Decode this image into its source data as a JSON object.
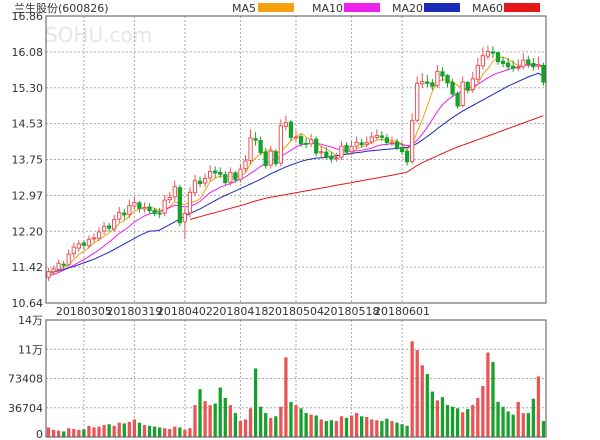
{
  "window": {
    "title": "兰生股份(600826)",
    "watermark": "SOHU.com"
  },
  "legend": [
    {
      "label": "MA5",
      "color": "#f5a10f"
    },
    {
      "label": "MA10",
      "color": "#ee22ee"
    },
    {
      "label": "MA20",
      "color": "#1a2bb8"
    },
    {
      "label": "MA60",
      "color": "#e41818"
    }
  ],
  "price_axis": {
    "ticks": [
      "16.86",
      "16.08",
      "15.30",
      "14.53",
      "13.75",
      "12.97",
      "12.20",
      "11.42",
      "10.64"
    ],
    "min": 10.64,
    "max": 16.86
  },
  "volume_axis": {
    "ticks": [
      "14万",
      "11万",
      "73408",
      "36704",
      "0"
    ],
    "max": 146816
  },
  "date_labels": [
    "20180305",
    "20180319",
    "20180402",
    "20180418",
    "20180504",
    "20180518",
    "20180601"
  ],
  "colors": {
    "up": "#ea5457",
    "down": "#16a22a",
    "grid": "#999999",
    "frame": "#555555"
  },
  "chart_data": {
    "type": "candlestick",
    "series_close": [
      11.32,
      11.38,
      11.5,
      11.46,
      11.7,
      11.85,
      11.92,
      11.89,
      12.02,
      12.05,
      12.18,
      12.3,
      12.26,
      12.45,
      12.6,
      12.55,
      12.75,
      12.82,
      12.69,
      12.71,
      12.64,
      12.58,
      12.58,
      12.87,
      12.93,
      13.16,
      12.38,
      12.58,
      13.04,
      13.29,
      13.23,
      13.34,
      13.49,
      13.46,
      13.43,
      13.25,
      13.47,
      13.31,
      13.54,
      13.72,
      14.22,
      14.17,
      13.9,
      13.62,
      13.93,
      13.66,
      14.48,
      14.55,
      14.23,
      14.24,
      14.09,
      14.08,
      14.18,
      13.89,
      13.92,
      13.81,
      13.76,
      13.79,
      14.04,
      13.91,
      14.03,
      14.12,
      14.07,
      14.12,
      14.24,
      14.27,
      14.23,
      14.12,
      14.12,
      14.0,
      13.92,
      13.7,
      14.59,
      15.4,
      15.44,
      15.4,
      15.34,
      15.66,
      15.56,
      15.41,
      15.17,
      14.91,
      15.43,
      15.26,
      15.5,
      15.79,
      16.0,
      16.09,
      16.06,
      15.87,
      15.83,
      15.76,
      15.73,
      15.75,
      15.9,
      15.82,
      15.76,
      15.8,
      15.43
    ],
    "series_open": [
      11.2,
      11.32,
      11.37,
      11.48,
      11.47,
      11.71,
      11.83,
      11.94,
      11.88,
      12.03,
      12.04,
      12.2,
      12.31,
      12.24,
      12.46,
      12.59,
      12.56,
      12.74,
      12.81,
      12.68,
      12.72,
      12.65,
      12.59,
      12.59,
      12.88,
      12.94,
      13.14,
      12.4,
      12.59,
      13.03,
      13.28,
      13.24,
      13.35,
      13.5,
      13.47,
      13.42,
      13.26,
      13.46,
      13.32,
      13.55,
      13.73,
      14.2,
      14.16,
      13.91,
      13.63,
      13.92,
      13.67,
      14.47,
      14.56,
      14.22,
      14.25,
      14.1,
      14.09,
      14.19,
      13.9,
      13.91,
      13.82,
      13.77,
      13.8,
      14.05,
      13.92,
      14.04,
      14.11,
      14.08,
      14.13,
      14.23,
      14.26,
      14.22,
      14.11,
      14.13,
      14.01,
      13.93,
      13.71,
      14.6,
      15.39,
      15.43,
      15.41,
      15.35,
      15.65,
      15.57,
      15.42,
      15.18,
      14.92,
      15.42,
      15.27,
      15.49,
      15.78,
      15.99,
      16.08,
      16.07,
      15.88,
      15.84,
      15.77,
      15.74,
      15.76,
      15.91,
      15.83,
      15.77,
      15.79
    ],
    "series_high": [
      11.4,
      11.45,
      11.58,
      11.55,
      11.8,
      11.95,
      12.0,
      12.0,
      12.1,
      12.15,
      12.28,
      12.4,
      12.38,
      12.55,
      12.72,
      12.68,
      12.88,
      12.95,
      12.85,
      12.82,
      12.8,
      12.7,
      12.7,
      12.98,
      13.05,
      13.3,
      13.2,
      12.7,
      13.15,
      13.42,
      13.38,
      13.45,
      13.62,
      13.6,
      13.58,
      13.5,
      13.58,
      13.5,
      13.66,
      13.85,
      14.4,
      14.35,
      14.25,
      14.0,
      14.05,
      13.98,
      14.62,
      14.7,
      14.6,
      14.38,
      14.3,
      14.22,
      14.3,
      14.25,
      14.05,
      14.02,
      13.92,
      13.9,
      14.15,
      14.12,
      14.15,
      14.25,
      14.2,
      14.25,
      14.35,
      14.4,
      14.36,
      14.3,
      14.25,
      14.2,
      14.12,
      13.98,
      14.75,
      15.55,
      15.62,
      15.58,
      15.5,
      15.8,
      15.75,
      15.6,
      15.5,
      15.22,
      15.55,
      15.45,
      15.65,
      15.95,
      16.18,
      16.22,
      16.2,
      16.05,
      15.98,
      15.95,
      15.9,
      15.92,
      16.05,
      16.0,
      15.95,
      15.98,
      15.85
    ],
    "series_low": [
      11.12,
      11.25,
      11.3,
      11.38,
      11.4,
      11.62,
      11.75,
      11.8,
      11.82,
      11.95,
      11.98,
      12.12,
      12.18,
      12.18,
      12.38,
      12.45,
      12.48,
      12.66,
      12.6,
      12.6,
      12.58,
      12.52,
      12.48,
      12.52,
      12.8,
      12.85,
      12.3,
      12.02,
      12.5,
      12.95,
      13.15,
      13.15,
      13.28,
      13.35,
      13.35,
      13.2,
      13.18,
      13.25,
      13.25,
      13.48,
      13.65,
      14.05,
      13.85,
      13.55,
      13.55,
      13.6,
      13.6,
      14.38,
      14.15,
      14.12,
      14.02,
      14.0,
      14.02,
      13.82,
      13.8,
      13.75,
      13.68,
      13.7,
      13.74,
      13.85,
      13.85,
      13.98,
      14.0,
      14.02,
      14.08,
      14.18,
      14.15,
      14.05,
      14.04,
      13.95,
      13.85,
      13.62,
      13.65,
      14.55,
      15.3,
      15.32,
      15.25,
      15.3,
      15.45,
      15.32,
      15.1,
      14.85,
      14.88,
      15.18,
      15.2,
      15.42,
      15.7,
      15.92,
      15.95,
      15.8,
      15.75,
      15.68,
      15.65,
      15.66,
      15.7,
      15.74,
      15.68,
      15.7,
      15.35
    ],
    "series_volume": [
      12000,
      9000,
      8000,
      7000,
      11000,
      10000,
      9000,
      9500,
      14000,
      12000,
      13000,
      15000,
      16000,
      14000,
      18000,
      17000,
      19000,
      22000,
      18000,
      15000,
      14000,
      13000,
      12000,
      11000,
      10000,
      13000,
      12000,
      9000,
      11000,
      40000,
      60000,
      45000,
      40000,
      42000,
      62000,
      49000,
      40000,
      30000,
      20000,
      22000,
      36000,
      86000,
      38000,
      30000,
      24000,
      26000,
      38000,
      100000,
      44000,
      40000,
      36000,
      30000,
      28000,
      27000,
      22000,
      20000,
      21000,
      20000,
      26000,
      24000,
      27000,
      30000,
      26000,
      25000,
      22000,
      21000,
      20000,
      23000,
      20000,
      18000,
      16000,
      14000,
      120000,
      109000,
      90000,
      79000,
      57000,
      46000,
      50000,
      40000,
      38000,
      36000,
      31000,
      35000,
      40000,
      49000,
      64000,
      106000,
      94000,
      44000,
      38000,
      32000,
      28000,
      44000,
      30000,
      30000,
      48000,
      76000,
      20000
    ],
    "ma5": [
      11.25,
      11.3,
      11.36,
      11.42,
      11.47,
      11.58,
      11.69,
      11.76,
      11.85,
      11.94,
      12.01,
      12.09,
      12.16,
      12.25,
      12.36,
      12.43,
      12.52,
      12.63,
      12.68,
      12.7,
      12.72,
      12.69,
      12.64,
      12.67,
      12.72,
      12.84,
      12.78,
      12.78,
      12.82,
      12.84,
      12.9,
      13.09,
      13.27,
      13.35,
      13.39,
      13.39,
      13.38,
      13.38,
      13.4,
      13.46,
      13.65,
      13.79,
      13.87,
      13.93,
      13.97,
      13.9,
      13.92,
      14.03,
      14.16,
      14.23,
      14.32,
      14.24,
      14.16,
      14.1,
      14.03,
      13.98,
      13.91,
      13.83,
      13.86,
      13.86,
      13.87,
      13.98,
      14.03,
      14.05,
      14.12,
      14.17,
      14.19,
      14.16,
      14.16,
      14.15,
      14.08,
      13.97,
      14.07,
      14.35,
      14.61,
      14.91,
      15.23,
      15.45,
      15.48,
      15.47,
      15.43,
      15.35,
      15.31,
      15.24,
      15.25,
      15.38,
      15.6,
      15.72,
      15.88,
      15.96,
      15.97,
      15.92,
      15.85,
      15.79,
      15.81,
      15.79,
      15.79,
      15.81,
      15.74
    ],
    "ma10": [
      11.22,
      11.26,
      11.3,
      11.35,
      11.4,
      11.46,
      11.52,
      11.58,
      11.65,
      11.72,
      11.79,
      11.88,
      11.96,
      12.05,
      12.15,
      12.22,
      12.3,
      12.4,
      12.46,
      12.53,
      12.57,
      12.6,
      12.63,
      12.65,
      12.71,
      12.76,
      12.74,
      12.72,
      12.74,
      12.78,
      12.84,
      12.94,
      13.03,
      13.09,
      13.15,
      13.19,
      13.23,
      13.27,
      13.32,
      13.37,
      13.45,
      13.52,
      13.6,
      13.67,
      13.72,
      13.77,
      13.82,
      13.88,
      13.95,
      14.02,
      14.07,
      14.09,
      14.1,
      14.1,
      14.08,
      14.05,
      14.02,
      13.98,
      13.96,
      13.94,
      13.93,
      13.94,
      13.95,
      13.97,
      14.0,
      14.04,
      14.07,
      14.08,
      14.09,
      14.09,
      14.08,
      14.05,
      14.07,
      14.17,
      14.3,
      14.45,
      14.62,
      14.79,
      14.94,
      15.04,
      15.12,
      15.18,
      15.24,
      15.29,
      15.33,
      15.38,
      15.45,
      15.52,
      15.58,
      15.63,
      15.66,
      15.7,
      15.73,
      15.76,
      15.78,
      15.8,
      15.8,
      15.81,
      15.77
    ],
    "ma20": [
      11.3,
      11.32,
      11.34,
      11.37,
      11.4,
      11.43,
      11.47,
      11.51,
      11.55,
      11.59,
      11.64,
      11.69,
      11.74,
      11.8,
      11.86,
      11.92,
      11.98,
      12.04,
      12.1,
      12.15,
      12.2,
      12.2,
      12.22,
      12.28,
      12.34,
      12.4,
      12.46,
      12.52,
      12.58,
      12.63,
      12.68,
      12.74,
      12.8,
      12.86,
      12.92,
      12.97,
      13.02,
      13.07,
      13.12,
      13.17,
      13.22,
      13.27,
      13.32,
      13.38,
      13.44,
      13.49,
      13.54,
      13.59,
      13.63,
      13.67,
      13.71,
      13.74,
      13.76,
      13.78,
      13.79,
      13.8,
      13.81,
      13.83,
      13.85,
      13.87,
      13.88,
      13.9,
      13.91,
      13.93,
      13.94,
      13.95,
      13.96,
      13.97,
      13.98,
      13.99,
      14.0,
      14.01,
      14.05,
      14.1,
      14.17,
      14.25,
      14.33,
      14.42,
      14.5,
      14.58,
      14.66,
      14.73,
      14.8,
      14.86,
      14.92,
      14.98,
      15.04,
      15.1,
      15.16,
      15.22,
      15.28,
      15.34,
      15.39,
      15.44,
      15.49,
      15.54,
      15.58,
      15.62,
      15.55
    ],
    "ma60": [
      null,
      null,
      null,
      null,
      null,
      null,
      null,
      null,
      null,
      null,
      null,
      null,
      null,
      null,
      null,
      null,
      null,
      null,
      null,
      null,
      null,
      null,
      null,
      null,
      null,
      null,
      null,
      null,
      12.45,
      12.48,
      12.51,
      12.54,
      12.57,
      12.6,
      12.63,
      12.66,
      12.69,
      12.72,
      12.75,
      12.78,
      12.82,
      12.85,
      12.88,
      12.91,
      12.93,
      12.95,
      12.97,
      12.99,
      13.01,
      13.03,
      13.05,
      13.07,
      13.09,
      13.11,
      13.13,
      13.15,
      13.17,
      13.19,
      13.21,
      13.23,
      13.25,
      13.27,
      13.29,
      13.31,
      13.33,
      13.35,
      13.37,
      13.39,
      13.41,
      13.43,
      13.45,
      13.48,
      13.55,
      13.62,
      13.68,
      13.73,
      13.78,
      13.83,
      13.88,
      13.93,
      13.98,
      14.02,
      14.06,
      14.1,
      14.14,
      14.18,
      14.22,
      14.26,
      14.3,
      14.34,
      14.38,
      14.42,
      14.46,
      14.5,
      14.54,
      14.58,
      14.62,
      14.66,
      14.7
    ]
  }
}
